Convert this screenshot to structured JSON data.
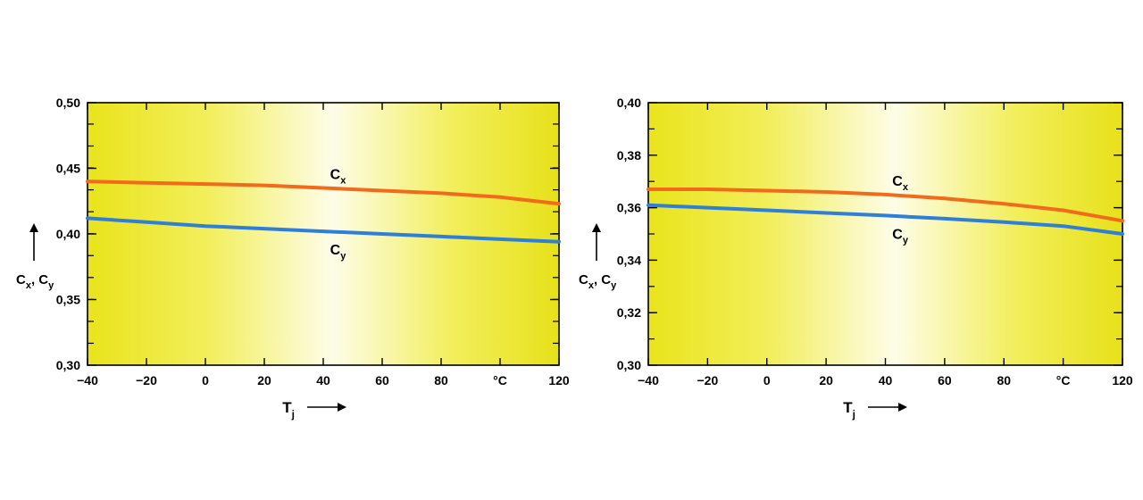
{
  "chart_data": [
    {
      "type": "line",
      "xlabel": "T",
      "xlabel_sub": "j",
      "ylabel_parts": [
        "C",
        "x",
        ", C",
        "y"
      ],
      "x_unit_tick": "°C",
      "xlim": [
        -40,
        120
      ],
      "ylim": [
        0.3,
        0.5
      ],
      "xticks": [
        -40,
        -20,
        0,
        20,
        40,
        60,
        80,
        100,
        120
      ],
      "xtick_labels": [
        "−40",
        "−20",
        "0",
        "20",
        "40",
        "60",
        "80",
        "°C",
        "120"
      ],
      "yticks": [
        0.3,
        0.35,
        0.4,
        0.45,
        0.5
      ],
      "ytick_labels": [
        "0,30",
        "0,35",
        "0,40",
        "0,45",
        "0,50"
      ],
      "y_minor_step": 0.0167,
      "background": "yellow-gradient",
      "series": [
        {
          "name": "C",
          "sub": "x",
          "color": "#f26a1b",
          "x": [
            -40,
            -20,
            0,
            20,
            40,
            60,
            80,
            100,
            120
          ],
          "y": [
            0.44,
            0.439,
            0.438,
            0.437,
            0.435,
            0.433,
            0.431,
            0.428,
            0.423
          ]
        },
        {
          "name": "C",
          "sub": "y",
          "color": "#2f7fd8",
          "x": [
            -40,
            -20,
            0,
            20,
            40,
            60,
            80,
            100,
            120
          ],
          "y": [
            0.412,
            0.409,
            0.406,
            0.404,
            0.402,
            0.4,
            0.398,
            0.396,
            0.394
          ]
        }
      ]
    },
    {
      "type": "line",
      "xlabel": "T",
      "xlabel_sub": "j",
      "ylabel_parts": [
        "C",
        "x",
        ", C",
        "y"
      ],
      "x_unit_tick": "°C",
      "xlim": [
        -40,
        120
      ],
      "ylim": [
        0.3,
        0.4
      ],
      "xticks": [
        -40,
        -20,
        0,
        20,
        40,
        60,
        80,
        100,
        120
      ],
      "xtick_labels": [
        "−40",
        "−20",
        "0",
        "20",
        "40",
        "60",
        "80",
        "°C",
        "120"
      ],
      "yticks": [
        0.3,
        0.32,
        0.34,
        0.36,
        0.38,
        0.4
      ],
      "ytick_labels": [
        "0,30",
        "0,32",
        "0,34",
        "0,36",
        "0,38",
        "0,40"
      ],
      "y_minor_step": 0.01,
      "background": "yellow-gradient",
      "series": [
        {
          "name": "C",
          "sub": "x",
          "color": "#f26a1b",
          "x": [
            -40,
            -20,
            0,
            20,
            40,
            60,
            80,
            100,
            120
          ],
          "y": [
            0.367,
            0.367,
            0.3665,
            0.366,
            0.365,
            0.3635,
            0.3615,
            0.359,
            0.355
          ]
        },
        {
          "name": "C",
          "sub": "y",
          "color": "#2f7fd8",
          "x": [
            -40,
            -20,
            0,
            20,
            40,
            60,
            80,
            100,
            120
          ],
          "y": [
            0.361,
            0.36,
            0.359,
            0.358,
            0.357,
            0.3558,
            0.3545,
            0.353,
            0.35
          ]
        }
      ]
    }
  ]
}
